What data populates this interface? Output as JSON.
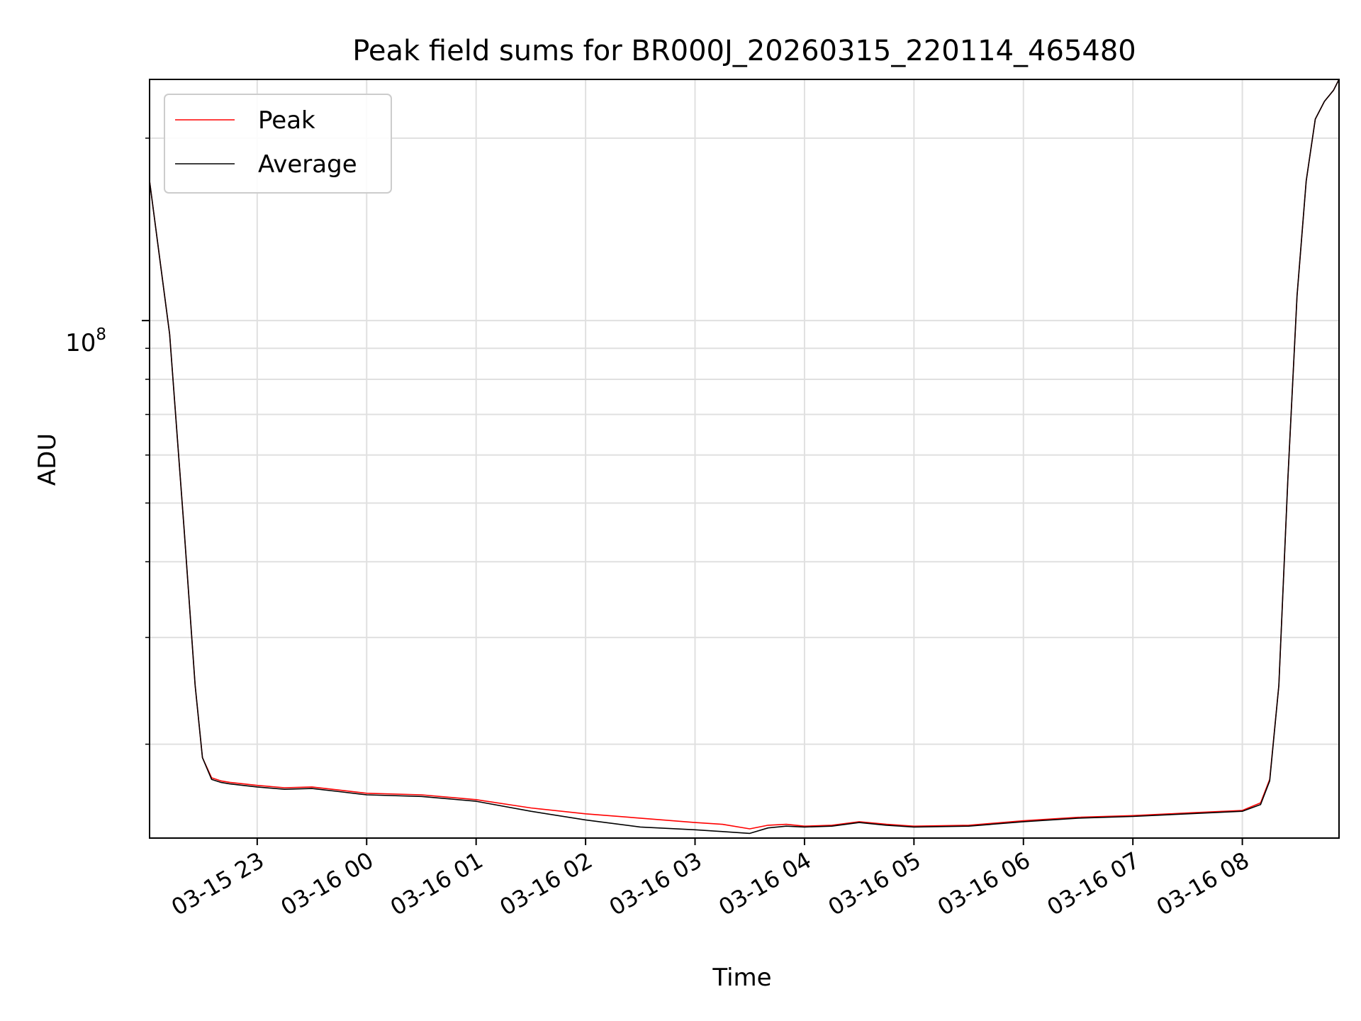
{
  "chart_data": {
    "type": "line",
    "title": "Peak field sums for BR000J_20260315_220114_465480",
    "xlabel": "Time",
    "ylabel": "ADU",
    "x_ticks": [
      "03-15 23",
      "03-16 00",
      "03-16 01",
      "03-16 02",
      "03-16 03",
      "03-16 04",
      "03-16 05",
      "03-16 06",
      "03-16 07",
      "03-16 08"
    ],
    "y_scale": "log",
    "y_major_tick_label": {
      "base": "10",
      "exponent": "8"
    },
    "y_major_tick_value": 100000000,
    "y_minor_tick_values": [
      20000000,
      30000000,
      40000000,
      50000000,
      60000000,
      70000000,
      80000000,
      90000000,
      200000000
    ],
    "xlim": [
      "2026-03-15 22:01",
      "2026-03-16 08:53"
    ],
    "ylim": [
      14000000,
      250000000
    ],
    "grid": true,
    "legend_position": "upper left",
    "colors": {
      "peak": "#ff0000",
      "average": "#000000",
      "grid": "#e0e0e0"
    },
    "series": [
      {
        "name": "Peak",
        "color": "#ff0000",
        "x": [
          "2026-03-15 22:01",
          "2026-03-15 22:12",
          "2026-03-15 22:20",
          "2026-03-15 22:26",
          "2026-03-15 22:30",
          "2026-03-15 22:35",
          "2026-03-15 22:40",
          "2026-03-15 22:45",
          "2026-03-15 23:00",
          "2026-03-15 23:15",
          "2026-03-15 23:30",
          "2026-03-15 23:45",
          "2026-03-16 00:00",
          "2026-03-16 00:30",
          "2026-03-16 01:00",
          "2026-03-16 01:30",
          "2026-03-16 02:00",
          "2026-03-16 02:30",
          "2026-03-16 03:00",
          "2026-03-16 03:15",
          "2026-03-16 03:30",
          "2026-03-16 03:40",
          "2026-03-16 03:50",
          "2026-03-16 04:00",
          "2026-03-16 04:15",
          "2026-03-16 04:30",
          "2026-03-16 04:45",
          "2026-03-16 05:00",
          "2026-03-16 05:30",
          "2026-03-16 06:00",
          "2026-03-16 06:30",
          "2026-03-16 07:00",
          "2026-03-16 07:30",
          "2026-03-16 08:00",
          "2026-03-16 08:10",
          "2026-03-16 08:15",
          "2026-03-16 08:20",
          "2026-03-16 08:25",
          "2026-03-16 08:30",
          "2026-03-16 08:35",
          "2026-03-16 08:40",
          "2026-03-16 08:45",
          "2026-03-16 08:50",
          "2026-03-16 08:53"
        ],
        "y": [
          170000000,
          95000000,
          45000000,
          25000000,
          19000000,
          17600000,
          17400000,
          17300000,
          17100000,
          16950000,
          17000000,
          16800000,
          16600000,
          16500000,
          16200000,
          15700000,
          15350000,
          15100000,
          14850000,
          14750000,
          14500000,
          14700000,
          14750000,
          14650000,
          14700000,
          14900000,
          14750000,
          14650000,
          14700000,
          14950000,
          15150000,
          15250000,
          15400000,
          15550000,
          16000000,
          17500000,
          25000000,
          55000000,
          110000000,
          170000000,
          215000000,
          230000000,
          240000000,
          250000000
        ]
      },
      {
        "name": "Average",
        "color": "#000000",
        "x": [
          "2026-03-15 22:01",
          "2026-03-15 22:12",
          "2026-03-15 22:20",
          "2026-03-15 22:26",
          "2026-03-15 22:30",
          "2026-03-15 22:35",
          "2026-03-15 22:40",
          "2026-03-15 22:45",
          "2026-03-15 23:00",
          "2026-03-15 23:15",
          "2026-03-15 23:30",
          "2026-03-15 23:45",
          "2026-03-16 00:00",
          "2026-03-16 00:30",
          "2026-03-16 01:00",
          "2026-03-16 01:30",
          "2026-03-16 02:00",
          "2026-03-16 02:30",
          "2026-03-16 03:00",
          "2026-03-16 03:15",
          "2026-03-16 03:30",
          "2026-03-16 03:40",
          "2026-03-16 03:50",
          "2026-03-16 04:00",
          "2026-03-16 04:15",
          "2026-03-16 04:30",
          "2026-03-16 04:45",
          "2026-03-16 05:00",
          "2026-03-16 05:30",
          "2026-03-16 06:00",
          "2026-03-16 06:30",
          "2026-03-16 07:00",
          "2026-03-16 07:30",
          "2026-03-16 08:00",
          "2026-03-16 08:10",
          "2026-03-16 08:15",
          "2026-03-16 08:20",
          "2026-03-16 08:25",
          "2026-03-16 08:30",
          "2026-03-16 08:35",
          "2026-03-16 08:40",
          "2026-03-16 08:45",
          "2026-03-16 08:50",
          "2026-03-16 08:53"
        ],
        "y": [
          170000000,
          95000000,
          45000000,
          25000000,
          19000000,
          17500000,
          17300000,
          17200000,
          17000000,
          16850000,
          16900000,
          16700000,
          16500000,
          16400000,
          16100000,
          15500000,
          15000000,
          14600000,
          14450000,
          14350000,
          14250000,
          14550000,
          14650000,
          14600000,
          14650000,
          14850000,
          14700000,
          14600000,
          14650000,
          14900000,
          15100000,
          15200000,
          15350000,
          15500000,
          15900000,
          17400000,
          25000000,
          55000000,
          110000000,
          170000000,
          215000000,
          230000000,
          240000000,
          250000000
        ]
      }
    ]
  }
}
